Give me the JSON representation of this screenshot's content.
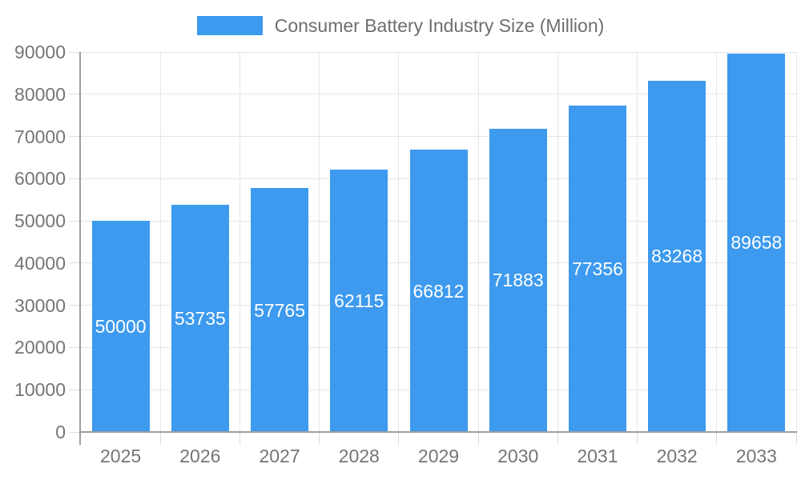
{
  "chart_data": {
    "type": "bar",
    "title": "Consumer Battery Industry Size (Million)",
    "categories": [
      "2025",
      "2026",
      "2027",
      "2028",
      "2029",
      "2030",
      "2031",
      "2032",
      "2033"
    ],
    "values": [
      50000,
      53735,
      57765,
      62115,
      66812,
      71883,
      77356,
      83268,
      89658
    ],
    "xlabel": "",
    "ylabel": "",
    "ylim": [
      0,
      90000
    ],
    "ytick_interval": 10000,
    "yticks": [
      "0",
      "10000",
      "20000",
      "30000",
      "40000",
      "50000",
      "60000",
      "70000",
      "80000",
      "90000"
    ],
    "grid": true,
    "value_labels_shown": true,
    "legend_position": "top-center",
    "colors": {
      "bar": "#3D9AEE",
      "value_label": "#FFFFFF",
      "axis_text": "#757575",
      "legend_text": "#6E6E6E",
      "gridline": "#E6E6E6",
      "tick": "#DCDCDC",
      "axis_line": "#9E9E9E",
      "background": "#FFFFFF"
    }
  }
}
